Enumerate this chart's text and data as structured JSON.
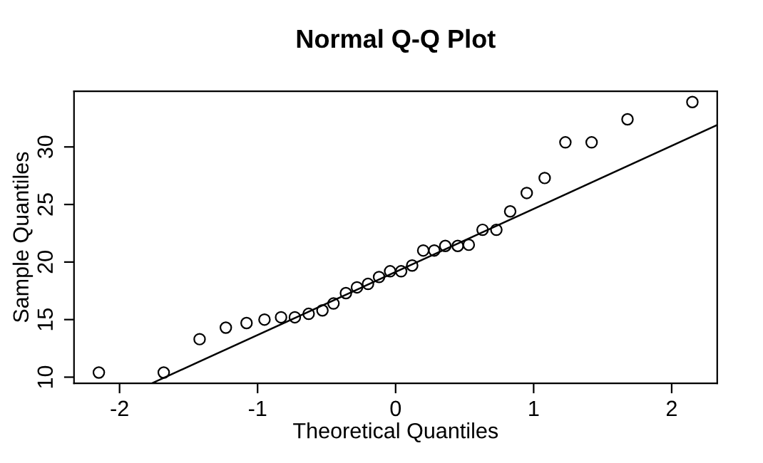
{
  "chart_data": {
    "type": "scatter",
    "title": "Normal Q-Q Plot",
    "xlabel": "Theoretical Quantiles",
    "ylabel": "Sample Quantiles",
    "xlim": [
      -2.33,
      2.33
    ],
    "ylim": [
      9.46,
      34.84
    ],
    "xticks": [
      -2,
      -1,
      0,
      1,
      2
    ],
    "yticks": [
      10,
      15,
      20,
      25,
      30
    ],
    "grid": false,
    "legend": false,
    "series": [
      {
        "color": "#000000",
        "marker": "circle",
        "x": [
          -2.15,
          -1.68,
          -1.42,
          -1.23,
          -1.08,
          -0.95,
          -0.83,
          -0.73,
          -0.63,
          -0.53,
          -0.45,
          -0.36,
          -0.28,
          -0.2,
          -0.12,
          -0.04,
          0.04,
          0.12,
          0.2,
          0.28,
          0.36,
          0.45,
          0.53,
          0.63,
          0.73,
          0.83,
          0.95,
          1.08,
          1.23,
          1.42,
          1.68,
          2.15
        ],
        "values": [
          10.4,
          10.4,
          13.3,
          14.3,
          14.7,
          15.0,
          15.2,
          15.2,
          15.5,
          15.8,
          16.4,
          17.3,
          17.8,
          18.1,
          18.7,
          19.2,
          19.2,
          19.7,
          21.0,
          21.0,
          21.4,
          21.4,
          21.5,
          22.8,
          22.8,
          24.4,
          26.0,
          27.3,
          30.4,
          30.4,
          32.4,
          33.9
        ]
      },
      {
        "type": "line",
        "color": "#000000",
        "marker": "none",
        "line_style": "solid",
        "x": [
          -1.76,
          2.33
        ],
        "values": [
          9.5,
          31.9
        ]
      }
    ]
  }
}
